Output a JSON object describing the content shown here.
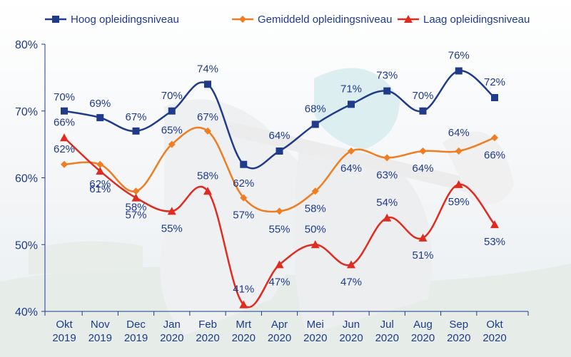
{
  "chart_data": {
    "type": "line",
    "categories": [
      [
        "Okt",
        "2019"
      ],
      [
        "Nov",
        "2019"
      ],
      [
        "Dec",
        "2019"
      ],
      [
        "Jan",
        "2020"
      ],
      [
        "Feb",
        "2020"
      ],
      [
        "Mrt",
        "2020"
      ],
      [
        "Apr",
        "2020"
      ],
      [
        "Mei",
        "2020"
      ],
      [
        "Jun",
        "2020"
      ],
      [
        "Jul",
        "2020"
      ],
      [
        "Aug",
        "2020"
      ],
      [
        "Sep",
        "2020"
      ],
      [
        "Okt",
        "2020"
      ]
    ],
    "yticks": [
      "40%",
      "50%",
      "60%",
      "70%",
      "80%"
    ],
    "ylim": [
      40,
      80
    ],
    "legend_position": "top",
    "series": [
      {
        "name": "Hoog opleidingsniveau",
        "color": "#1f3b8a",
        "marker": "square",
        "values": [
          70,
          69,
          67,
          70,
          74,
          62,
          64,
          68,
          71,
          73,
          70,
          76,
          72
        ],
        "labels": [
          "70%",
          "69%",
          "67%",
          "70%",
          "74%",
          "62%",
          "64%",
          "68%",
          "71%",
          "73%",
          "70%",
          "76%",
          "72%"
        ]
      },
      {
        "name": "Gemiddeld opleidingsniveau",
        "color": "#ef7d22",
        "marker": "diamond",
        "values": [
          62,
          62,
          58,
          65,
          67,
          57,
          55,
          58,
          64,
          63,
          64,
          64,
          66
        ],
        "labels": [
          "62%",
          "62%",
          "58%",
          "65%",
          "67%",
          "57%",
          "55%",
          "58%",
          "64%",
          "63%",
          "64%",
          "64%",
          "66%"
        ]
      },
      {
        "name": "Laag opleidingsniveau",
        "color": "#e02b20",
        "marker": "triangle",
        "values": [
          66,
          61,
          57,
          55,
          58,
          41,
          47,
          50,
          47,
          54,
          51,
          59,
          53
        ],
        "labels": [
          "66%",
          "61%",
          "57%",
          "55%",
          "58%",
          "41%",
          "47%",
          "50%",
          "47%",
          "54%",
          "51%",
          "59%",
          "53%"
        ]
      }
    ]
  }
}
